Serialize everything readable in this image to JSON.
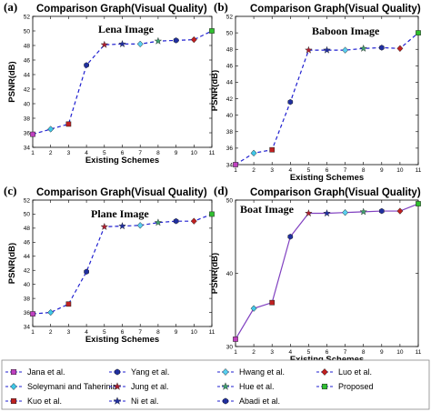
{
  "chart_data": [
    {
      "type": "line",
      "panel": "(a)",
      "title": "Comparison Graph(Visual Quality)",
      "annotation": "Lena Image",
      "xlabel": "Existing Schemes",
      "ylabel": "PSNR(dB)",
      "x": [
        1,
        2,
        3,
        4,
        5,
        6,
        7,
        8,
        9,
        10,
        11
      ],
      "values": [
        35.8,
        36.5,
        37.2,
        45.3,
        48.1,
        48.2,
        48.2,
        48.6,
        48.7,
        48.8,
        50.0
      ],
      "ylim": [
        34,
        52
      ],
      "yticks": [
        34,
        36,
        38,
        40,
        42,
        44,
        46,
        48,
        50,
        52
      ],
      "xlim": [
        1,
        11
      ],
      "line_color": "#1f1fd0",
      "line_style": "dashed"
    },
    {
      "type": "line",
      "panel": "(b)",
      "title": "Comparison Graph(Visual Quality)",
      "annotation": "Baboon Image",
      "xlabel": "Existing Schemes",
      "ylabel": "PSNR(dB)",
      "x": [
        1,
        2,
        3,
        4,
        5,
        6,
        7,
        8,
        9,
        10,
        11
      ],
      "values": [
        34.0,
        35.4,
        35.8,
        41.6,
        47.9,
        47.9,
        47.9,
        48.1,
        48.2,
        48.1,
        50.0
      ],
      "ylim": [
        34,
        52
      ],
      "yticks": [
        34,
        36,
        38,
        40,
        42,
        44,
        46,
        48,
        50,
        52
      ],
      "xlim": [
        1,
        11
      ],
      "line_color": "#1f1fd0",
      "line_style": "dashed"
    },
    {
      "type": "line",
      "panel": "(c)",
      "title": "Comparison Graph(Visual Quality)",
      "annotation": "Plane Image",
      "xlabel": "Existing Schemes",
      "ylabel": "PSNR(dB)",
      "x": [
        1,
        2,
        3,
        4,
        5,
        6,
        7,
        8,
        9,
        10,
        11
      ],
      "values": [
        35.8,
        36.0,
        37.2,
        41.8,
        48.2,
        48.3,
        48.4,
        48.8,
        49.0,
        49.0,
        50.0
      ],
      "ylim": [
        34,
        52
      ],
      "yticks": [
        34,
        36,
        38,
        40,
        42,
        44,
        46,
        48,
        50,
        52
      ],
      "xlim": [
        1,
        11
      ],
      "line_color": "#1f1fd0",
      "line_style": "dashed"
    },
    {
      "type": "line",
      "panel": "(d)",
      "title": "Comparison Graph(Visual Quality)",
      "annotation": "Boat Image",
      "xlabel": "Existing Schemes",
      "ylabel": "PSNR(dB)",
      "x": [
        1,
        2,
        3,
        4,
        5,
        6,
        7,
        8,
        9,
        10,
        11
      ],
      "values": [
        31.0,
        35.2,
        36.0,
        45.0,
        48.2,
        48.2,
        48.3,
        48.4,
        48.5,
        48.5,
        49.5
      ],
      "ylim": [
        30,
        50
      ],
      "yticks": [
        30,
        40,
        50
      ],
      "xlim": [
        1,
        11
      ],
      "line_color": "#8040c0",
      "line_style": "solid"
    }
  ],
  "marker_styles": [
    {
      "shape": "square",
      "fill": "#c040c0"
    },
    {
      "shape": "diamond",
      "fill": "#40c8e8"
    },
    {
      "shape": "square",
      "fill": "#c02020"
    },
    {
      "shape": "hexagon",
      "fill": "#1f2fa0"
    },
    {
      "shape": "star",
      "fill": "#b02030"
    },
    {
      "shape": "star",
      "fill": "#2030a0"
    },
    {
      "shape": "diamond",
      "fill": "#5ad0f0"
    },
    {
      "shape": "star",
      "fill": "#40a070"
    },
    {
      "shape": "hexagon",
      "fill": "#1f2fa0"
    },
    {
      "shape": "diamond",
      "fill": "#c02020"
    },
    {
      "shape": "square",
      "fill": "#30c030"
    }
  ],
  "legend": [
    {
      "label": "Jana et al.",
      "marker": "square",
      "fill": "#c040c0"
    },
    {
      "label": "Yang et al.",
      "marker": "hexagon",
      "fill": "#1f2fa0"
    },
    {
      "label": "Hwang et al.",
      "marker": "diamond",
      "fill": "#5ad0f0"
    },
    {
      "label": "Luo et al.",
      "marker": "diamond",
      "fill": "#c02020"
    },
    {
      "label": "Soleymani and Taherinia",
      "marker": "diamond",
      "fill": "#40c8e8"
    },
    {
      "label": "Jung et al.",
      "marker": "star",
      "fill": "#b02030"
    },
    {
      "label": "Hue et al.",
      "marker": "star",
      "fill": "#40a070"
    },
    {
      "label": "Proposed",
      "marker": "square",
      "fill": "#30c030"
    },
    {
      "label": "Kuo et al.",
      "marker": "square",
      "fill": "#c02020"
    },
    {
      "label": "Ni et al.",
      "marker": "star",
      "fill": "#2030a0"
    },
    {
      "label": "Abadi et al.",
      "marker": "hexagon",
      "fill": "#1f2fa0"
    }
  ]
}
